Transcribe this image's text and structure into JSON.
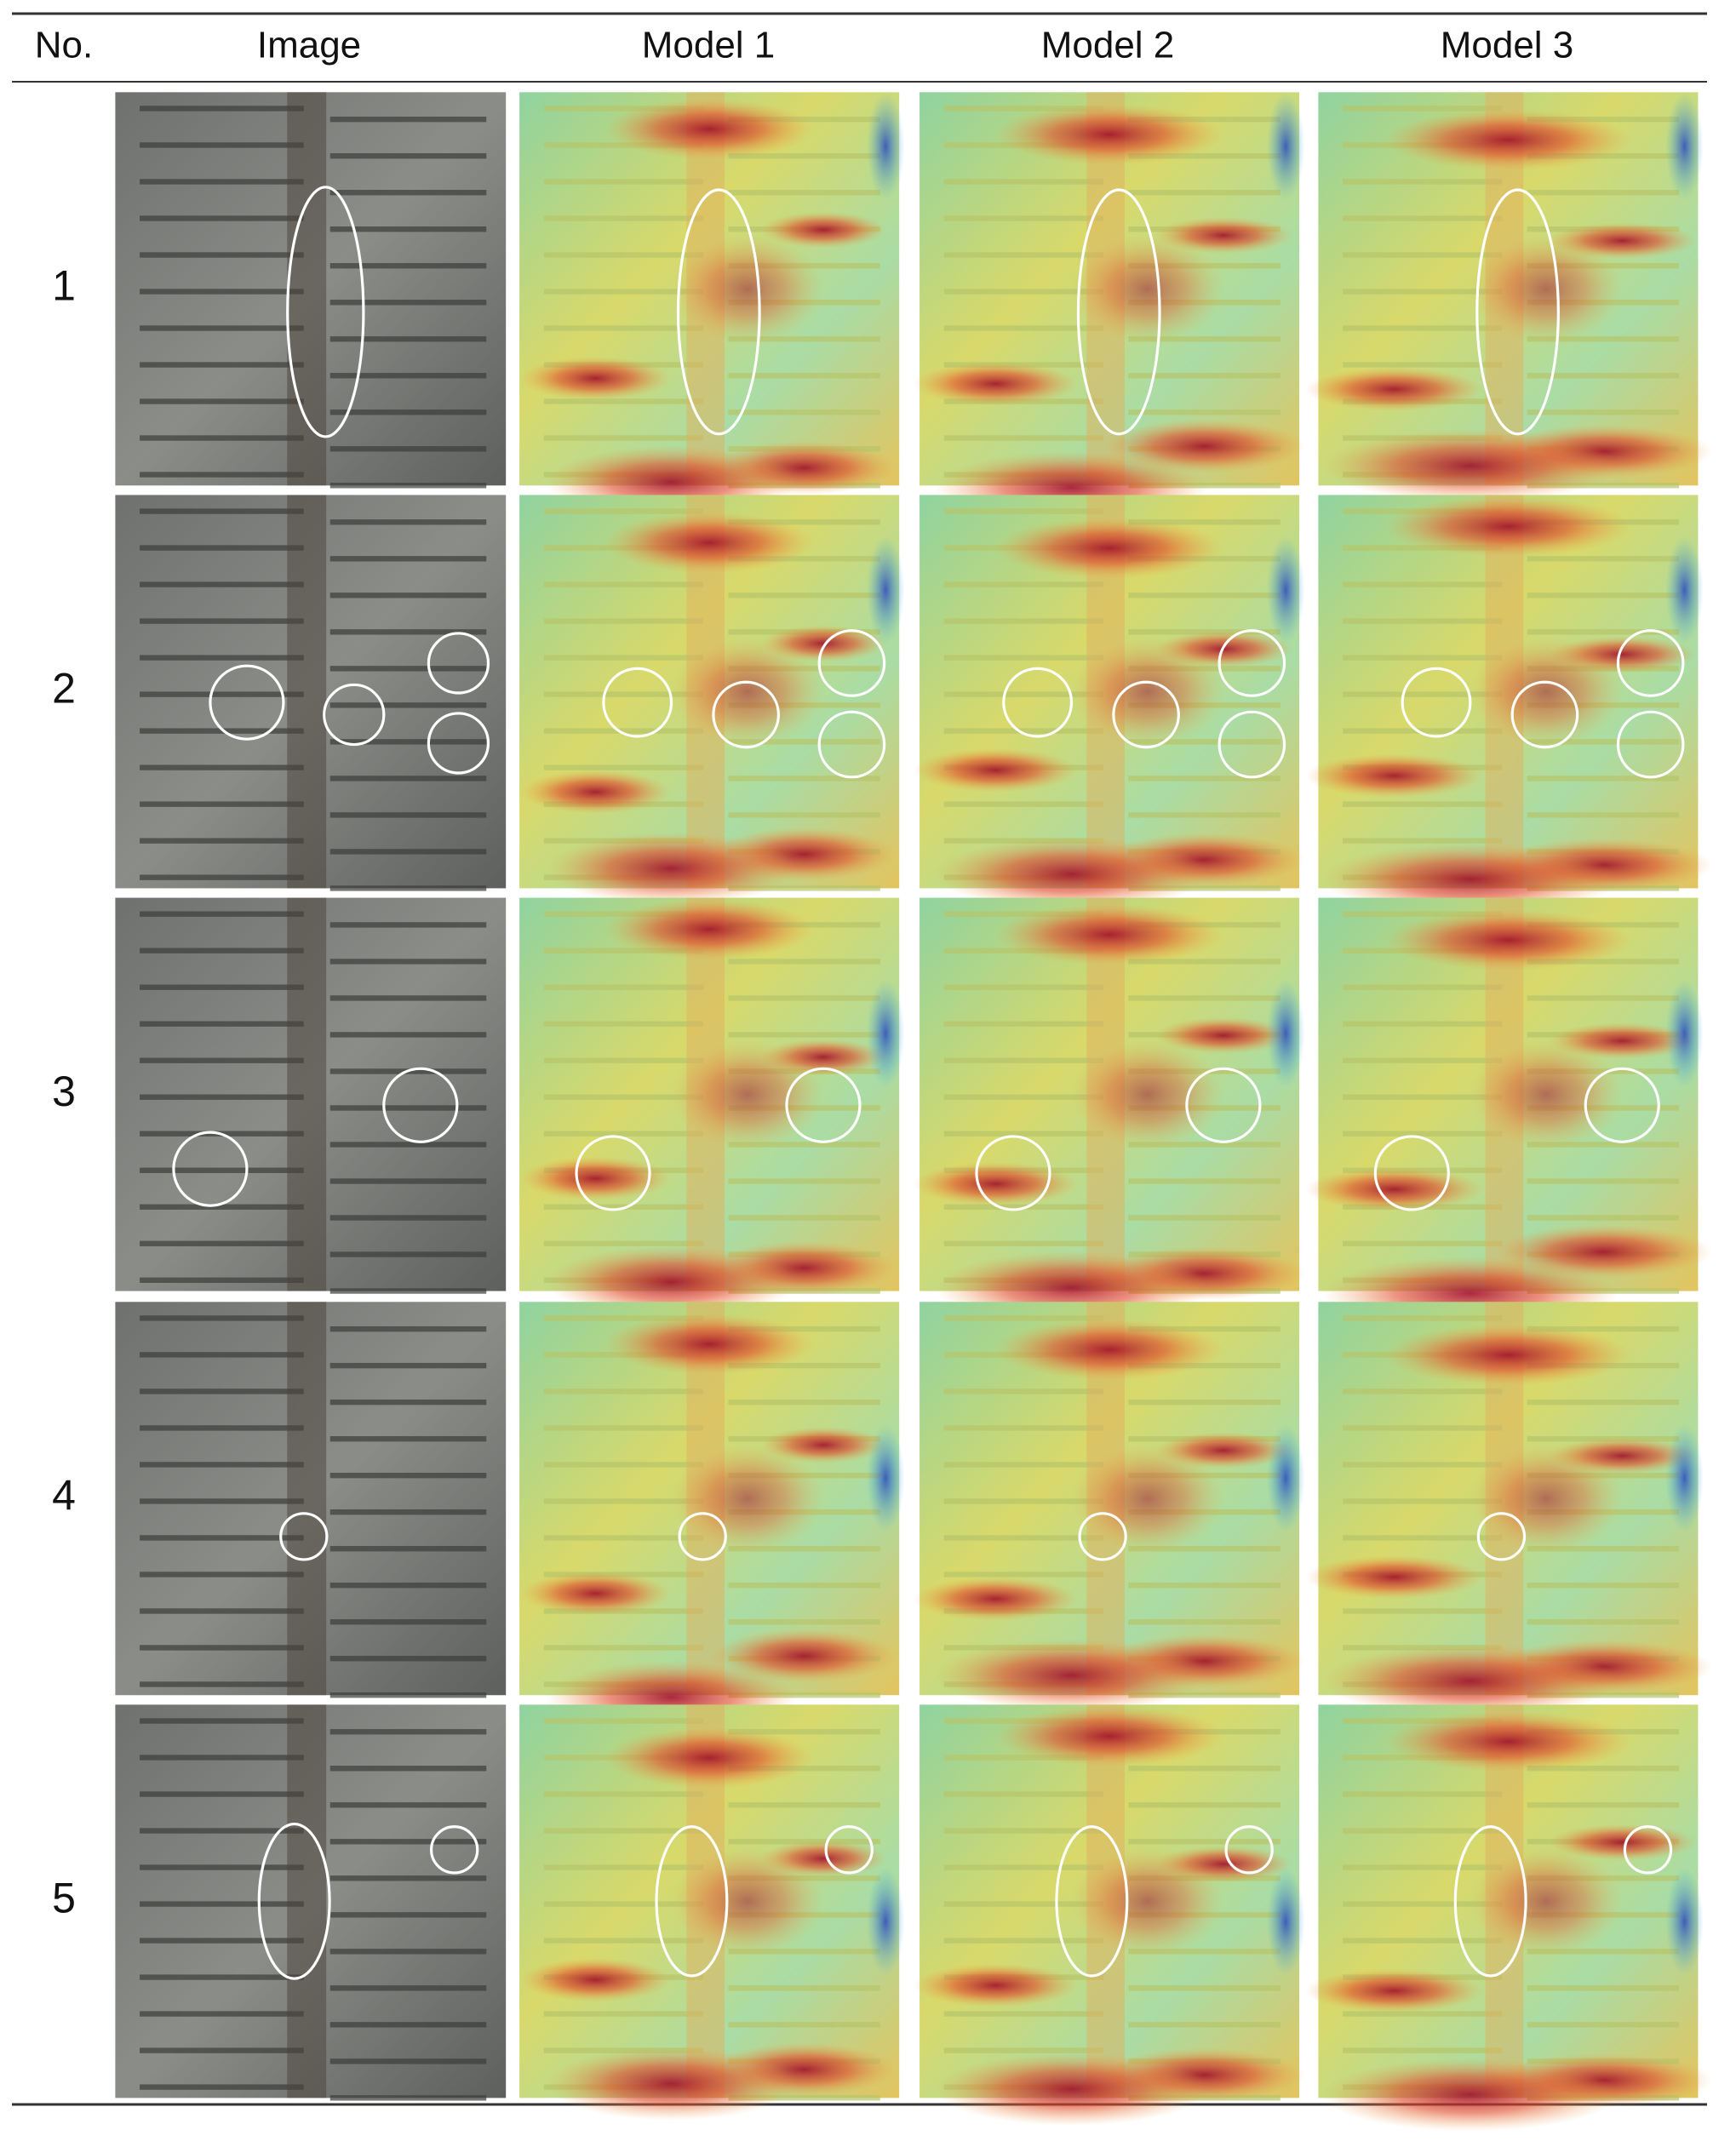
{
  "header": [
    "No.",
    "Image",
    "Model 1",
    "Model 2",
    "Model 3"
  ],
  "rows": [
    {
      "no": "1"
    },
    {
      "no": "2"
    },
    {
      "no": "3"
    },
    {
      "no": "4"
    },
    {
      "no": "5"
    }
  ]
}
